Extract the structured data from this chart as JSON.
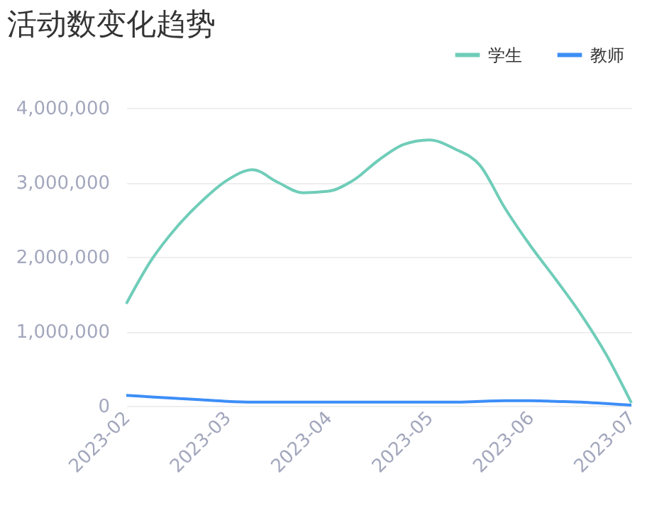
{
  "chart_data": {
    "type": "line",
    "title": "活动数变化趋势",
    "categories": [
      "2023-02",
      null,
      null,
      null,
      "2023-03",
      null,
      null,
      null,
      "2023-04",
      null,
      null,
      null,
      "2023-05",
      null,
      null,
      null,
      "2023-06",
      null,
      null,
      null,
      "2023-07"
    ],
    "series": [
      {
        "name": "学生",
        "color": "#6fcdb9",
        "values": [
          1370000,
          1960000,
          2400000,
          2750000,
          3030000,
          3170000,
          3000000,
          2860000,
          2880000,
          3030000,
          3300000,
          3510000,
          3570000,
          3450000,
          3230000,
          2650000,
          2150000,
          1700000,
          1230000,
          690000,
          40000
        ]
      },
      {
        "name": "教师",
        "color": "#3d8ef7",
        "values": [
          140000,
          120000,
          100000,
          80000,
          60000,
          50000,
          50000,
          50000,
          50000,
          50000,
          50000,
          50000,
          50000,
          50000,
          60000,
          70000,
          70000,
          60000,
          50000,
          30000,
          10000
        ]
      }
    ],
    "ylim": [
      0,
      4000000
    ],
    "yticks": [
      0,
      {
        "value": 1000000,
        "label": "1,000,000"
      },
      {
        "value": 2000000,
        "label": "2,000,000"
      },
      {
        "value": 3000000,
        "label": "3,000,000"
      },
      {
        "value": 4000000,
        "label": "4,000,000"
      }
    ],
    "grid": "y",
    "legend": "top right",
    "marker": "none",
    "line_style": "solid"
  }
}
